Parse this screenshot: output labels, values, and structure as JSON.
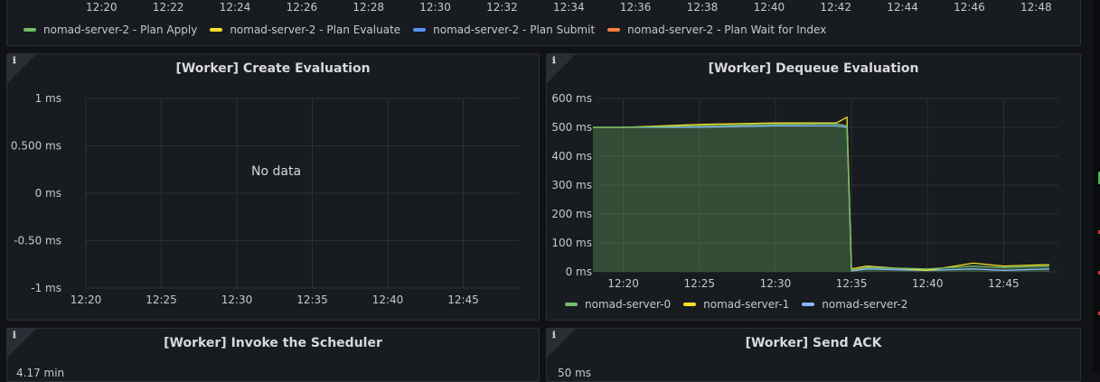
{
  "top_panel": {
    "time_ticks": [
      "12:20",
      "12:22",
      "12:24",
      "12:26",
      "12:28",
      "12:30",
      "12:32",
      "12:34",
      "12:36",
      "12:38",
      "12:40",
      "12:42",
      "12:44",
      "12:46",
      "12:48"
    ],
    "legend": [
      {
        "label": "nomad-server-2 - Plan Apply",
        "color": "#73bf69"
      },
      {
        "label": "nomad-server-2 - Plan Evaluate",
        "color": "#fade2a"
      },
      {
        "label": "nomad-server-2 - Plan Submit",
        "color": "#5794f2"
      },
      {
        "label": "nomad-server-2 - Plan Wait for Index",
        "color": "#ff7f3f"
      }
    ]
  },
  "panels": {
    "create_eval": {
      "title": "[Worker] Create Evaluation",
      "info_icon": "ℹ",
      "no_data": "No data",
      "y_ticks": [
        "1 ms",
        "0.500 ms",
        "0 ms",
        "-0.50 ms",
        "-1 ms"
      ],
      "x_ticks": [
        "12:20",
        "12:25",
        "12:30",
        "12:35",
        "12:40",
        "12:45"
      ]
    },
    "dequeue_eval": {
      "title": "[Worker] Dequeue Evaluation",
      "info_icon": "ℹ",
      "y_ticks": [
        "600 ms",
        "500 ms",
        "400 ms",
        "300 ms",
        "200 ms",
        "100 ms",
        "0 ms"
      ],
      "x_ticks": [
        "12:20",
        "12:25",
        "12:30",
        "12:35",
        "12:40",
        "12:45"
      ],
      "legend": [
        {
          "label": "nomad-server-0",
          "color": "#73bf69"
        },
        {
          "label": "nomad-server-1",
          "color": "#fade2a"
        },
        {
          "label": "nomad-server-2",
          "color": "#8ab8ff"
        }
      ]
    },
    "invoke_scheduler": {
      "title": "[Worker] Invoke the Scheduler",
      "info_icon": "ℹ",
      "partial_tick": "4.17 min"
    },
    "send_ack": {
      "title": "[Worker] Send ACK",
      "info_icon": "ℹ",
      "partial_tick": "50 ms"
    }
  },
  "chart_data": {
    "type": "area",
    "title": "[Worker] Dequeue Evaluation",
    "xlabel": "",
    "ylabel": "",
    "x": [
      "12:18",
      "12:20",
      "12:25",
      "12:30",
      "12:34",
      "12:34.7",
      "12:35",
      "12:36",
      "12:40",
      "12:43",
      "12:45",
      "12:48"
    ],
    "ylim": [
      0,
      600
    ],
    "series": [
      {
        "name": "nomad-server-0",
        "values": [
          500,
          500,
          505,
          510,
          512,
          505,
          5,
          15,
          10,
          20,
          15,
          20
        ]
      },
      {
        "name": "nomad-server-1",
        "values": [
          500,
          500,
          510,
          515,
          515,
          535,
          10,
          20,
          5,
          30,
          20,
          25
        ]
      },
      {
        "name": "nomad-server-2",
        "values": [
          500,
          500,
          500,
          505,
          505,
          500,
          3,
          10,
          5,
          10,
          5,
          10
        ]
      }
    ]
  }
}
